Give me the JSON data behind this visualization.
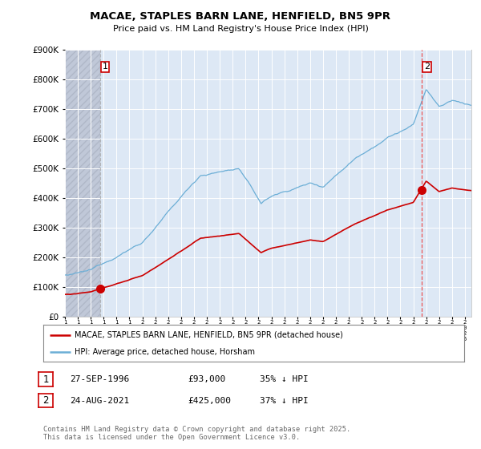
{
  "title": "MACAE, STAPLES BARN LANE, HENFIELD, BN5 9PR",
  "subtitle": "Price paid vs. HM Land Registry's House Price Index (HPI)",
  "legend_line1": "MACAE, STAPLES BARN LANE, HENFIELD, BN5 9PR (detached house)",
  "legend_line2": "HPI: Average price, detached house, Horsham",
  "sale1_date": "27-SEP-1996",
  "sale1_price": 93000,
  "sale1_label": "35% ↓ HPI",
  "sale2_date": "24-AUG-2021",
  "sale2_price": 425000,
  "sale2_label": "37% ↓ HPI",
  "footer": "Contains HM Land Registry data © Crown copyright and database right 2025.\nThis data is licensed under the Open Government Licence v3.0.",
  "hpi_color": "#6baed6",
  "sale_color": "#cc0000",
  "vline1_color": "#aaaaaa",
  "vline2_color": "#ee4444",
  "ylim": [
    0,
    900000
  ],
  "yticks": [
    0,
    100000,
    200000,
    300000,
    400000,
    500000,
    600000,
    700000,
    800000,
    900000
  ],
  "xlim_start": 1994.0,
  "xlim_end": 2025.5,
  "plot_bg_color": "#dde8f5",
  "fig_bg_color": "#ffffff",
  "grid_color": "#ffffff",
  "hatch_color": "#c0c8d8"
}
